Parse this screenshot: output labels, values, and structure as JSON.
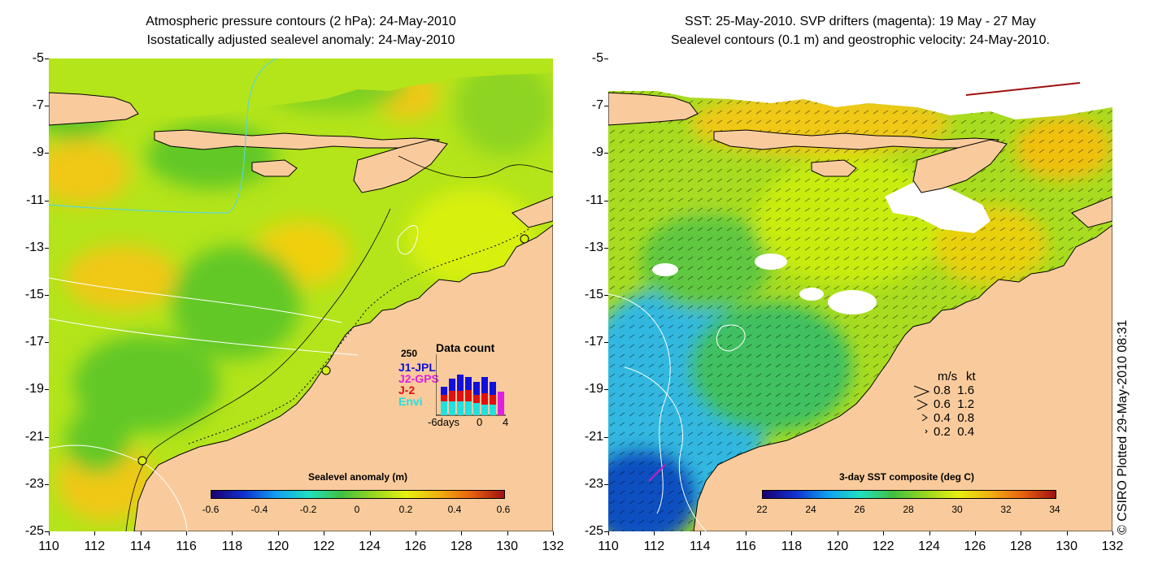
{
  "left_panel": {
    "title_line1": "Atmospheric pressure contours (2 hPa): 24-May-2010",
    "title_line2": "Isostatically adjusted sealevel anomaly: 24-May-2010",
    "colorbar": {
      "title": "Sealevel anomaly (m)",
      "ticks": [
        "-0.6",
        "-0.4",
        "-0.2",
        "0",
        "0.2",
        "0.4",
        "0.6"
      ]
    },
    "data_count": {
      "title": "Data count",
      "ymax_label": "250",
      "series": [
        {
          "name": "J1-JPL",
          "color": "#1010e0"
        },
        {
          "name": "J2-GPS",
          "color": "#e020e0"
        },
        {
          "name": "J-2",
          "color": "#e01010"
        },
        {
          "name": "Envi",
          "color": "#20e0e0"
        }
      ],
      "x_labels": [
        "-6days",
        "0",
        "4"
      ]
    }
  },
  "right_panel": {
    "title_line1": "SST: 25-May-2010. SVP drifters (magenta): 19 May - 27 May",
    "title_line2": "Sealevel contours (0.1 m) and geostrophic velocity: 24-May-2010.",
    "colorbar": {
      "title": "3-day SST composite (deg C)",
      "ticks": [
        "22",
        "24",
        "26",
        "28",
        "30",
        "32",
        "34"
      ]
    },
    "velocity_legend": {
      "header_ms": "m/s",
      "header_kt": "kt",
      "rows": [
        {
          "ms": "0.8",
          "kt": "1.6"
        },
        {
          "ms": "0.6",
          "kt": "1.2"
        },
        {
          "ms": "0.4",
          "kt": "0.8"
        },
        {
          "ms": "0.2",
          "kt": "0.4"
        }
      ]
    }
  },
  "axes": {
    "y_ticks": [
      "-5",
      "-7",
      "-9",
      "-11",
      "-13",
      "-15",
      "-17",
      "-19",
      "-21",
      "-23",
      "-25"
    ],
    "x_ticks": [
      "110",
      "112",
      "114",
      "116",
      "118",
      "120",
      "122",
      "124",
      "126",
      "128",
      "130",
      "132"
    ]
  },
  "credit": "© CSIRO Plotted 29-May-2010 08:31",
  "colors": {
    "land": "#f9cb9c",
    "sea_green": "#9ad41a",
    "sea_lime": "#c8ee10",
    "sea_yellow": "#f0d010",
    "cloud_white": "#ffffff"
  }
}
